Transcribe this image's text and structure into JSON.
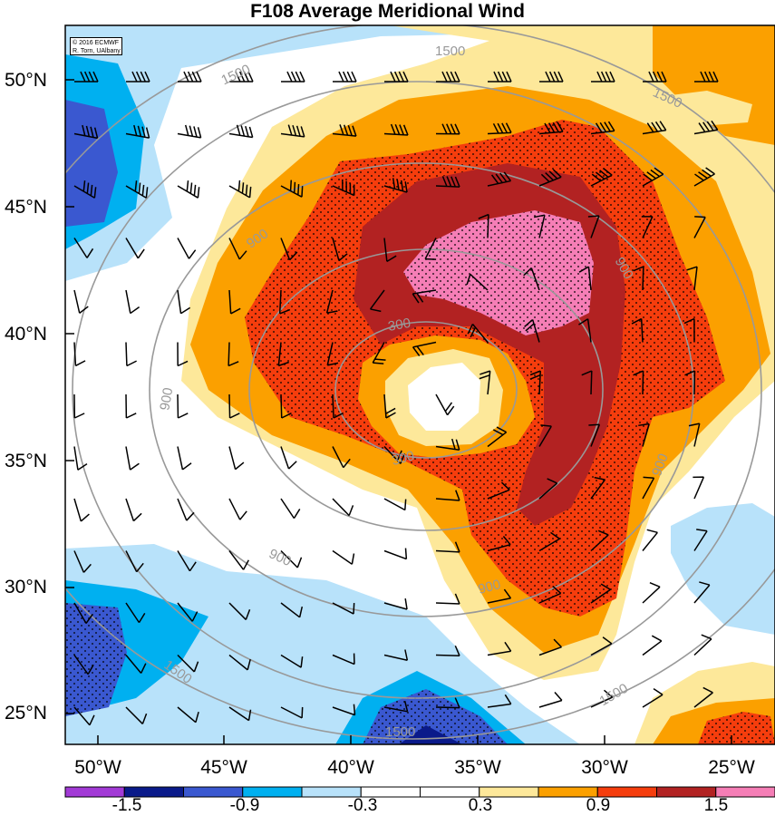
{
  "title": "F108 Average Meridional Wind",
  "credit": {
    "line1": "© 2016 ECMWF",
    "line2": "R. Torn, UAlbany"
  },
  "lat_labels": [
    "50°N",
    "45°N",
    "40°N",
    "35°N",
    "30°N",
    "25°N"
  ],
  "lon_labels": [
    "50°W",
    "45°W",
    "40°W",
    "35°W",
    "30°W",
    "25°W"
  ],
  "contour_labels": [
    "1500",
    "1500",
    "1500",
    "900",
    "900",
    "900",
    "900",
    "900",
    "900",
    "300",
    "300",
    "1500",
    "1500",
    "1500"
  ],
  "colorbar": {
    "labels": [
      "-1.5",
      "-0.9",
      "-0.3",
      "0.3",
      "0.9",
      "1.5"
    ],
    "colors": [
      "#a23ad6",
      "#0a1a8a",
      "#3a58d0",
      "#00b0f0",
      "#b8e2fa",
      "#ffffff",
      "#ffffff",
      "#fde89a",
      "#fba000",
      "#f53d0d",
      "#b22222",
      "#f57eb6"
    ]
  },
  "palette": {
    "deep_blue": "#3a58d0",
    "navy": "#0a1a8a",
    "cyan": "#00b0f0",
    "light_blue": "#b8e2fa",
    "pale_yellow": "#fde89a",
    "orange": "#fba000",
    "red_orange": "#f53d0d",
    "dark_red": "#b22222",
    "pink": "#f57eb6"
  }
}
